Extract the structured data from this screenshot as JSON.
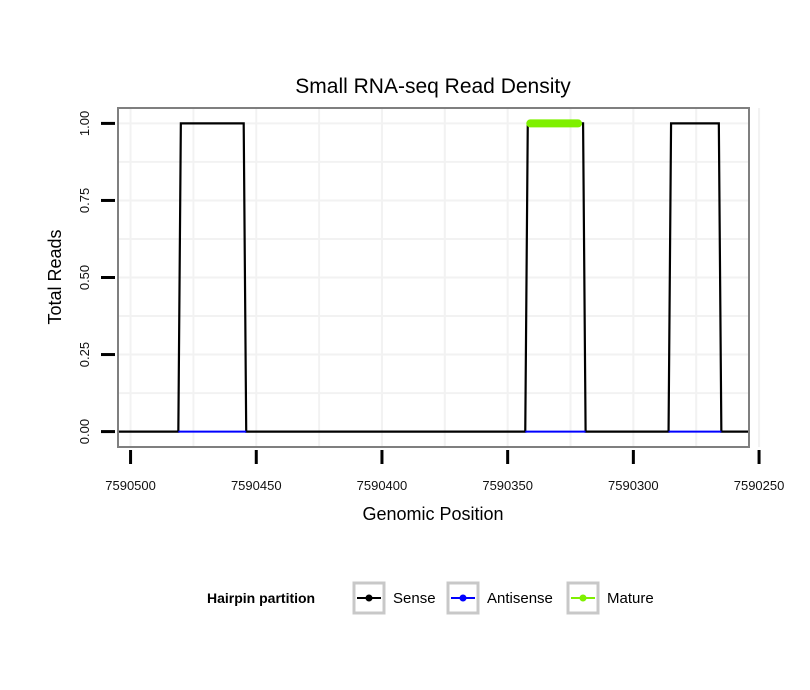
{
  "chart_data": {
    "type": "line",
    "title": "Small RNA-seq Read Density",
    "xlabel": "Genomic Position",
    "ylabel": "Total Reads",
    "x_reversed": true,
    "xlim": [
      7590505,
      7590254
    ],
    "ylim": [
      -0.05,
      1.05
    ],
    "x_ticks": [
      7590500,
      7590450,
      7590400,
      7590350,
      7590300,
      7590250
    ],
    "x_tick_labels": [
      "7590500",
      "7590450",
      "7590400",
      "7590350",
      "7590300",
      "7590250"
    ],
    "y_ticks": [
      0.0,
      0.25,
      0.5,
      0.75,
      1.0
    ],
    "y_tick_labels": [
      "0.00",
      "0.25",
      "0.50",
      "0.75",
      "1.00"
    ],
    "grid": true,
    "legend_position": "bottom",
    "legend_title": "Hairpin partition",
    "series": [
      {
        "name": "Sense",
        "color": "#000000",
        "x": [
          7590505,
          7590481,
          7590480,
          7590455,
          7590454,
          7590343,
          7590342,
          7590320,
          7590319,
          7590286,
          7590285,
          7590266,
          7590265,
          7590254
        ],
        "values": [
          0,
          0,
          1,
          1,
          0,
          0,
          1,
          1,
          0,
          0,
          1,
          1,
          0,
          0
        ]
      },
      {
        "name": "Antisense",
        "color": "#0000ff",
        "x": [
          7590481,
          7590454,
          7590343,
          7590319,
          7590286,
          7590265
        ],
        "values": [
          0,
          0,
          0,
          0,
          0,
          0
        ],
        "segments": [
          [
            0,
            1
          ],
          [
            2,
            3
          ],
          [
            4,
            5
          ]
        ]
      },
      {
        "name": "Mature",
        "color": "#7ff000",
        "x": [
          7590341,
          7590322
        ],
        "values": [
          1,
          1
        ]
      }
    ]
  }
}
